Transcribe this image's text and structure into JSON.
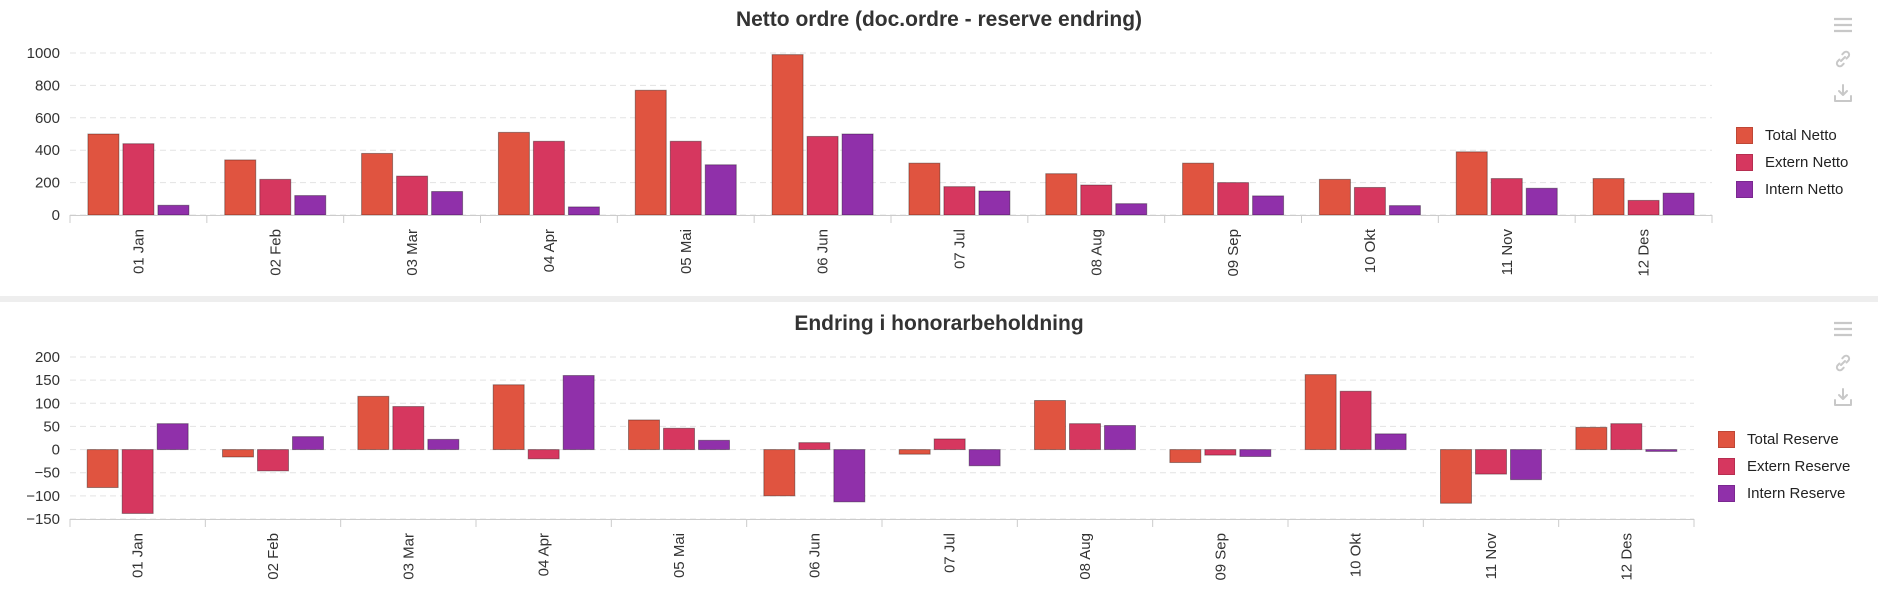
{
  "colors": {
    "total": "#e05440",
    "extern": "#d6375f",
    "intern": "#9030aa",
    "grid": "#e3e3e3",
    "axis": "#cccccc",
    "tool": "#c8c8c8"
  },
  "toolbar": {
    "icons": [
      "menu-icon",
      "link-icon",
      "download-icon"
    ]
  },
  "chart_data": [
    {
      "type": "bar",
      "title": "Netto ordre (doc.ordre - reserve endring)",
      "categories": [
        "01 Jan",
        "02 Feb",
        "03 Mar",
        "04 Apr",
        "05 Mai",
        "06 Jun",
        "07 Jul",
        "08 Aug",
        "09 Sep",
        "10 Okt",
        "11 Nov",
        "12 Des"
      ],
      "yticks": [
        "0",
        "200",
        "400",
        "600",
        "800",
        "1000"
      ],
      "ylim": [
        0,
        1000
      ],
      "grid": true,
      "legend_position": "right",
      "series": [
        {
          "name": "Total Netto",
          "color": "#e05440",
          "values": [
            500,
            340,
            380,
            510,
            770,
            990,
            320,
            255,
            320,
            220,
            390,
            225
          ]
        },
        {
          "name": "Extern Netto",
          "color": "#d6375f",
          "values": [
            440,
            220,
            240,
            455,
            455,
            485,
            175,
            185,
            200,
            170,
            225,
            90
          ]
        },
        {
          "name": "Intern Netto",
          "color": "#9030aa",
          "values": [
            60,
            120,
            145,
            50,
            310,
            500,
            148,
            70,
            118,
            58,
            165,
            135
          ]
        }
      ]
    },
    {
      "type": "bar",
      "title": "Endring i honorarbeholdning",
      "categories": [
        "01 Jan",
        "02 Feb",
        "03 Mar",
        "04 Apr",
        "05 Mai",
        "06 Jun",
        "07 Jul",
        "08 Aug",
        "09 Sep",
        "10 Okt",
        "11 Nov",
        "12 Des"
      ],
      "yticks": [
        "−150",
        "−100",
        "−50",
        "0",
        "50",
        "100",
        "150",
        "200"
      ],
      "ylim": [
        -150,
        200
      ],
      "grid": true,
      "legend_position": "right",
      "series": [
        {
          "name": "Total Reserve",
          "color": "#e05440",
          "values": [
            -82,
            -16,
            115,
            140,
            64,
            -100,
            -10,
            106,
            -28,
            162,
            -116,
            48
          ]
        },
        {
          "name": "Extern Reserve",
          "color": "#d6375f",
          "values": [
            -138,
            -46,
            93,
            -20,
            46,
            15,
            23,
            56,
            -12,
            126,
            -53,
            56
          ]
        },
        {
          "name": "Intern Reserve",
          "color": "#9030aa",
          "values": [
            56,
            28,
            22,
            160,
            20,
            -113,
            -35,
            52,
            -15,
            34,
            -65,
            -4
          ]
        }
      ]
    }
  ]
}
